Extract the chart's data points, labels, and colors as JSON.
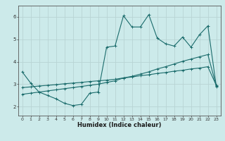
{
  "xlabel": "Humidex (Indice chaleur)",
  "bg_color": "#cceaea",
  "line_color": "#1a6b6b",
  "grid_color": "#b8d4d4",
  "xlim": [
    -0.5,
    23.5
  ],
  "ylim": [
    1.6,
    6.5
  ],
  "yticks": [
    2,
    3,
    4,
    5,
    6
  ],
  "xticks": [
    0,
    1,
    2,
    3,
    4,
    5,
    6,
    7,
    8,
    9,
    10,
    11,
    12,
    13,
    14,
    15,
    16,
    17,
    18,
    19,
    20,
    21,
    22,
    23
  ],
  "line1_x": [
    0,
    1,
    2,
    3,
    4,
    5,
    6,
    7,
    8,
    9,
    10,
    11,
    12,
    13,
    14,
    15,
    16,
    17,
    18,
    19,
    20,
    21,
    22,
    23
  ],
  "line1_y": [
    3.55,
    3.05,
    2.65,
    2.5,
    2.35,
    2.15,
    2.05,
    2.1,
    2.6,
    2.65,
    4.65,
    4.7,
    6.05,
    5.55,
    5.55,
    6.1,
    5.05,
    4.8,
    4.7,
    5.1,
    4.65,
    5.2,
    5.6,
    2.9
  ],
  "line2_x": [
    0,
    1,
    2,
    3,
    4,
    5,
    6,
    7,
    8,
    9,
    10,
    11,
    12,
    13,
    14,
    15,
    16,
    17,
    18,
    19,
    20,
    21,
    22,
    23
  ],
  "line2_y": [
    2.85,
    2.88,
    2.92,
    2.95,
    2.98,
    3.02,
    3.05,
    3.08,
    3.12,
    3.15,
    3.18,
    3.22,
    3.28,
    3.32,
    3.38,
    3.42,
    3.48,
    3.52,
    3.58,
    3.62,
    3.68,
    3.72,
    3.78,
    2.95
  ],
  "line3_x": [
    0,
    1,
    2,
    3,
    4,
    5,
    6,
    7,
    8,
    9,
    10,
    11,
    12,
    13,
    14,
    15,
    16,
    17,
    18,
    19,
    20,
    21,
    22,
    23
  ],
  "line3_y": [
    2.55,
    2.6,
    2.65,
    2.7,
    2.75,
    2.8,
    2.85,
    2.9,
    2.95,
    3.0,
    3.08,
    3.15,
    3.28,
    3.35,
    3.45,
    3.55,
    3.68,
    3.78,
    3.9,
    4.02,
    4.12,
    4.22,
    4.32,
    2.92
  ]
}
